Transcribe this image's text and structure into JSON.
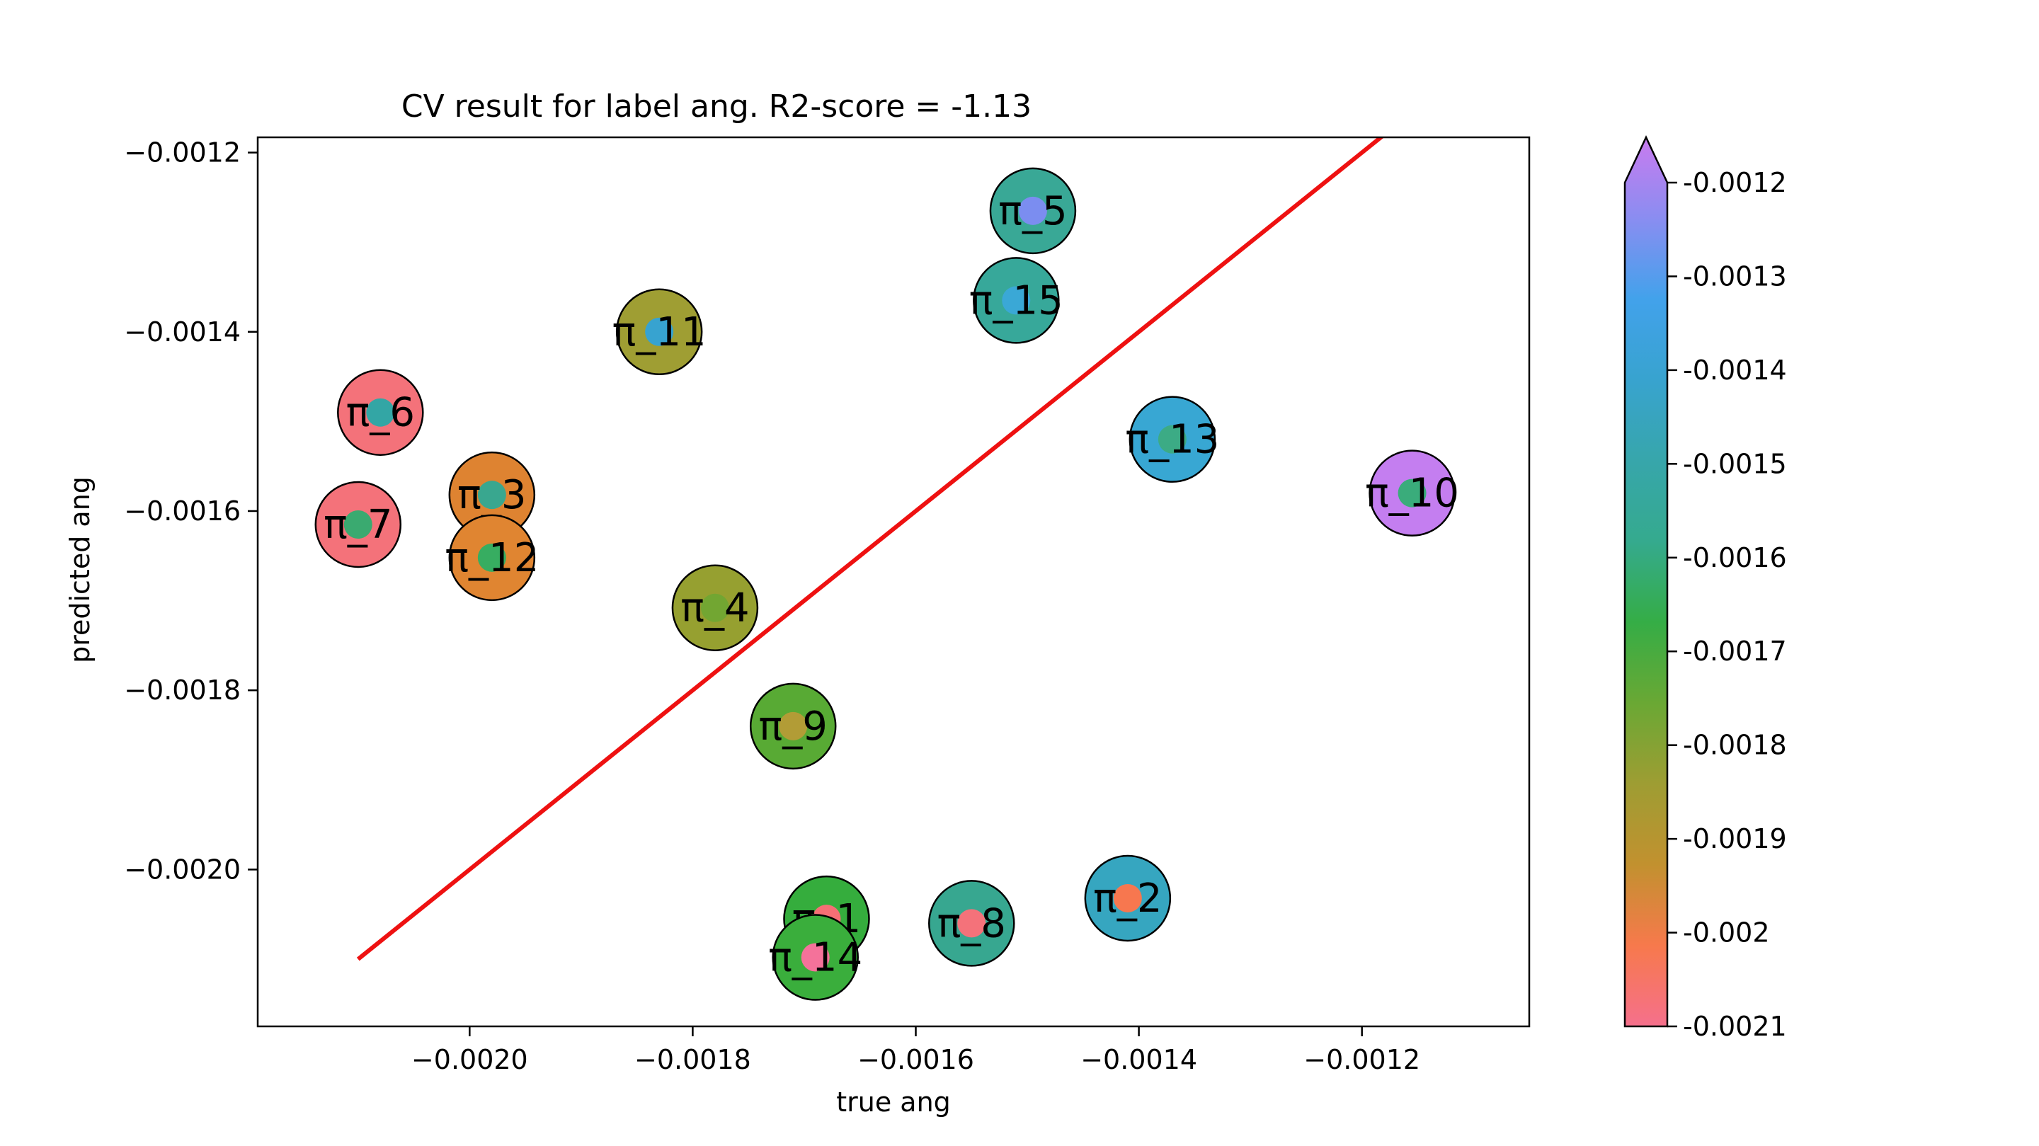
{
  "chart_data": {
    "type": "scatter",
    "title": "CV result for label ang. R2-score = -1.13",
    "xlabel": "true ang",
    "ylabel": "predicted ang",
    "xlim": [
      -0.00219,
      -0.00105
    ],
    "ylim": [
      -0.002175,
      -0.001183
    ],
    "x_ticks": [
      {
        "value": -0.002,
        "label": "−0.0020"
      },
      {
        "value": -0.0018,
        "label": "−0.0018"
      },
      {
        "value": -0.0016,
        "label": "−0.0016"
      },
      {
        "value": -0.0014,
        "label": "−0.0014"
      },
      {
        "value": -0.0012,
        "label": "−0.0012"
      }
    ],
    "y_ticks": [
      {
        "value": -0.0012,
        "label": "−0.0012"
      },
      {
        "value": -0.0014,
        "label": "−0.0014"
      },
      {
        "value": -0.0016,
        "label": "−0.0016"
      },
      {
        "value": -0.0018,
        "label": "−0.0018"
      },
      {
        "value": -0.002,
        "label": "−0.0020"
      }
    ],
    "identity_line": {
      "x": [
        -0.0021,
        -0.00118
      ],
      "y": [
        -0.0021,
        -0.00118
      ],
      "color": "#ee1111"
    },
    "grid": false,
    "legend": "none",
    "points": [
      {
        "label": "π_1",
        "x": -0.00168,
        "y": -0.002055,
        "true_color": "#35ad3d",
        "pred_color": "#f66f75"
      },
      {
        "label": "π_2",
        "x": -0.00141,
        "y": -0.002032,
        "true_color": "#36a6c0",
        "pred_color": "#f7774f"
      },
      {
        "label": "π_3",
        "x": -0.00198,
        "y": -0.001582,
        "true_color": "#de8331",
        "pred_color": "#39a78f"
      },
      {
        "label": "π_4",
        "x": -0.00178,
        "y": -0.001708,
        "true_color": "#96a030",
        "pred_color": "#72a632"
      },
      {
        "label": "π_5",
        "x": -0.001495,
        "y": -0.001265,
        "true_color": "#39a896",
        "pred_color": "#7b8df0"
      },
      {
        "label": "π_6",
        "x": -0.00208,
        "y": -0.00149,
        "true_color": "#f4727a",
        "pred_color": "#33a6a5"
      },
      {
        "label": "π_7",
        "x": -0.0021,
        "y": -0.001615,
        "true_color": "#f4727a",
        "pred_color": "#3aaa70"
      },
      {
        "label": "π_8",
        "x": -0.00155,
        "y": -0.00206,
        "true_color": "#37a790",
        "pred_color": "#f4727a"
      },
      {
        "label": "π_9",
        "x": -0.00171,
        "y": -0.00184,
        "true_color": "#58aa34",
        "pred_color": "#b29c36"
      },
      {
        "label": "π_10",
        "x": -0.001155,
        "y": -0.00158,
        "true_color": "#c47ef0",
        "pred_color": "#3aac7b"
      },
      {
        "label": "π_11",
        "x": -0.00183,
        "y": -0.0014,
        "true_color": "#9f9e33",
        "pred_color": "#37a3d0"
      },
      {
        "label": "π_12",
        "x": -0.00198,
        "y": -0.001652,
        "true_color": "#e08531",
        "pred_color": "#37ad61"
      },
      {
        "label": "π_13",
        "x": -0.00137,
        "y": -0.00152,
        "true_color": "#38a7d3",
        "pred_color": "#3cab85"
      },
      {
        "label": "π_14",
        "x": -0.00169,
        "y": -0.002098,
        "true_color": "#3aae3c",
        "pred_color": "#f4729a"
      },
      {
        "label": "π_15",
        "x": -0.00151,
        "y": -0.001365,
        "true_color": "#37a89a",
        "pred_color": "#3aa8d6"
      }
    ],
    "colorbar": {
      "range": [
        -0.0021,
        -0.0012
      ],
      "extend": "max",
      "colors": [
        "#f5708c",
        "#f7794c",
        "#c2912f",
        "#9e9d33",
        "#6aa834",
        "#35ad46",
        "#35aa8e",
        "#37a6ab",
        "#38a3cf",
        "#42a2eb",
        "#8a8df1",
        "#c97bef"
      ],
      "ticks": [
        "-0.0012",
        "-0.0013",
        "-0.0014",
        "-0.0015",
        "-0.0016",
        "-0.0017",
        "-0.0018",
        "-0.0019",
        "-0.002",
        "-0.0021"
      ]
    }
  }
}
